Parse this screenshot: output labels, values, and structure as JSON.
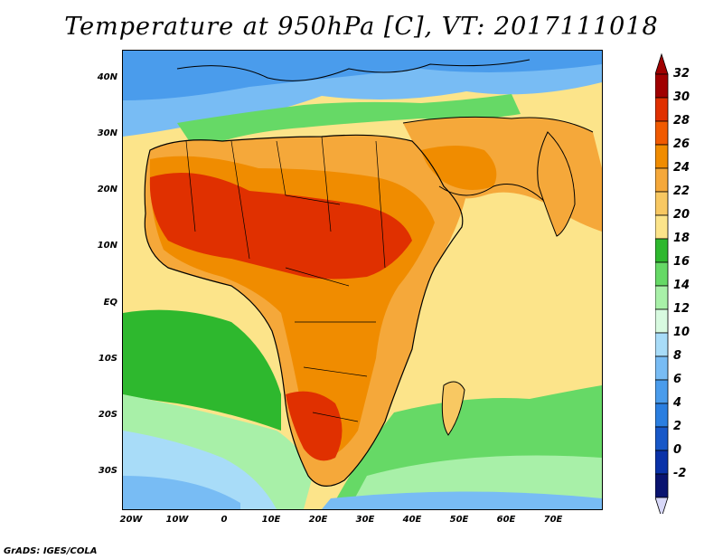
{
  "title": "Temperature at 950hPa [C], VT: 2017111018",
  "credit": "GrADS: IGES/COLA",
  "lat_labels": [
    "40N",
    "30N",
    "20N",
    "10N",
    "EQ",
    "10S",
    "20S",
    "30S"
  ],
  "lon_labels": [
    "20W",
    "10W",
    "0",
    "10E",
    "20E",
    "30E",
    "40E",
    "50E",
    "60E",
    "70E"
  ],
  "colorbar": {
    "labels": [
      "32",
      "30",
      "28",
      "26",
      "24",
      "22",
      "20",
      "18",
      "16",
      "14",
      "12",
      "10",
      "8",
      "6",
      "4",
      "2",
      "0",
      "-2"
    ],
    "colors": [
      "#a00000",
      "#e03000",
      "#f05a00",
      "#f08c00",
      "#f5a83a",
      "#f8c862",
      "#fce48a",
      "#2eb82e",
      "#66d966",
      "#a8f0a8",
      "#d8fae0",
      "#a8dcf8",
      "#78bcf4",
      "#4a9cec",
      "#2a7ee0",
      "#1858c8",
      "#0a32a8",
      "#0a1470"
    ]
  }
}
